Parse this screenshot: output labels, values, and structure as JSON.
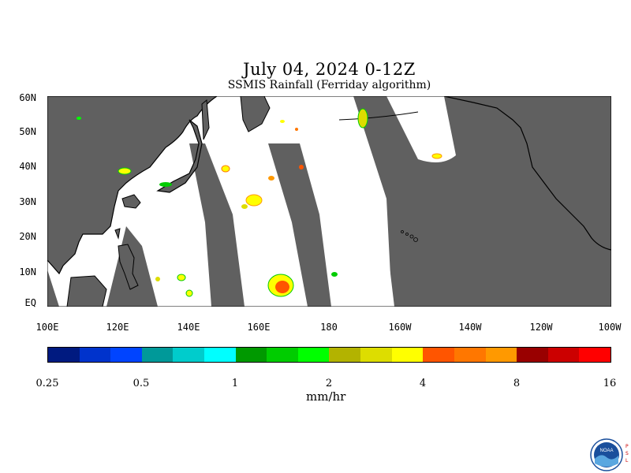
{
  "title": "July 04, 2024 0-12Z",
  "subtitle": "SSMIS Rainfall (Ferriday algorithm)",
  "lat_labels": [
    "60N",
    "50N",
    "40N",
    "30N",
    "20N",
    "10N",
    "EQ"
  ],
  "lon_labels": [
    "100E",
    "120E",
    "140E",
    "160E",
    "180",
    "160W",
    "140W",
    "120W",
    "100W"
  ],
  "colorbar": {
    "colors": [
      "#001a80",
      "#0033cc",
      "#0044ff",
      "#009999",
      "#00cccc",
      "#00ffff",
      "#009900",
      "#00cc00",
      "#00ff00",
      "#b3b300",
      "#dddd00",
      "#ffff00",
      "#ff5500",
      "#ff7700",
      "#ff9900",
      "#990000",
      "#cc0000",
      "#ff0000"
    ],
    "tick_labels": [
      "0.25",
      "0.5",
      "1",
      "2",
      "4",
      "8",
      "16"
    ],
    "unit": "mm/hr"
  },
  "map": {
    "region": "Western and Central Pacific, EQ–60N, 100E–100W",
    "land_color": "#606060",
    "data_color": "#ffffff",
    "no_data_color": "#606060"
  },
  "logo": {
    "name": "NOAA",
    "text": "NOAA",
    "side_text": [
      "P",
      "S",
      "L"
    ]
  }
}
